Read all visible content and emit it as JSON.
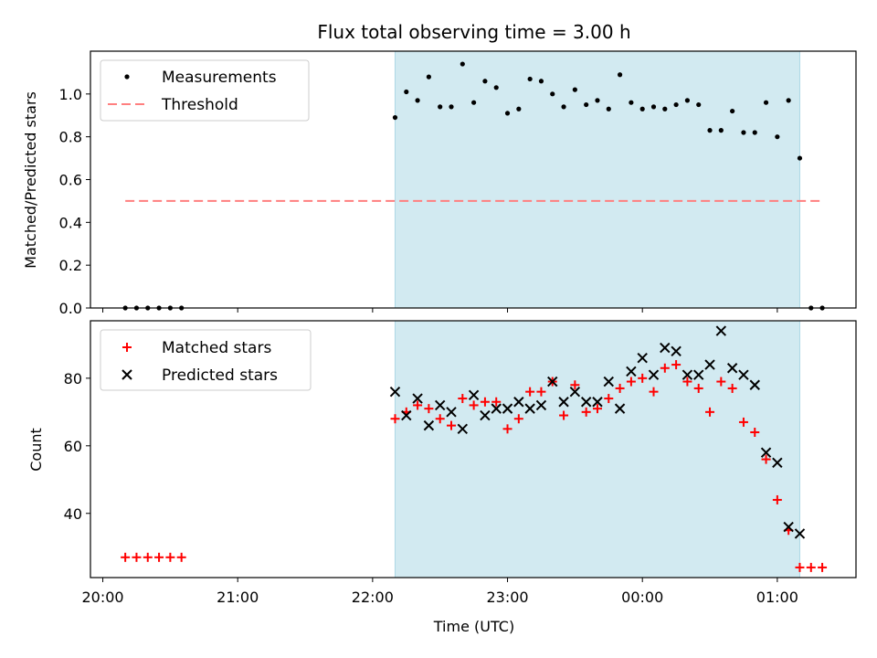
{
  "chart_data": {
    "type": "scatter",
    "title": "Flux total observing time = 3.00 h",
    "xlabel": "Time (UTC)",
    "x_ticks": [
      {
        "label": "20:00",
        "t": 0
      },
      {
        "label": "21:00",
        "t": 60
      },
      {
        "label": "22:00",
        "t": 120
      },
      {
        "label": "23:00",
        "t": 180
      },
      {
        "label": "00:00",
        "t": 240
      },
      {
        "label": "01:00",
        "t": 300
      }
    ],
    "xlim": [
      -5.5,
      335
    ],
    "shaded_interval": [
      130,
      310
    ],
    "shade_color": "#add8e6",
    "top_panel": {
      "ylabel": "Matched/Predicted stars",
      "ylim": [
        0,
        1.2
      ],
      "yticks": [
        "0.0",
        "0.2",
        "0.4",
        "0.6",
        "0.8",
        "1.0"
      ],
      "legend": {
        "placement": "upper left",
        "entries": [
          "Measurements",
          "Threshold"
        ]
      },
      "threshold": {
        "name": "Threshold",
        "value": 0.5,
        "x_range": [
          10,
          320
        ],
        "color": "#ff7f7f"
      },
      "measurements": {
        "name": "Measurements",
        "color": "#000000",
        "points": [
          [
            10,
            0
          ],
          [
            15,
            0
          ],
          [
            20,
            0
          ],
          [
            25,
            0
          ],
          [
            30,
            0
          ],
          [
            35,
            0
          ],
          [
            130,
            0.89
          ],
          [
            135,
            1.01
          ],
          [
            140,
            0.97
          ],
          [
            145,
            1.08
          ],
          [
            150,
            0.94
          ],
          [
            155,
            0.94
          ],
          [
            160,
            1.14
          ],
          [
            165,
            0.96
          ],
          [
            170,
            1.06
          ],
          [
            175,
            1.03
          ],
          [
            180,
            0.91
          ],
          [
            185,
            0.93
          ],
          [
            190,
            1.07
          ],
          [
            195,
            1.06
          ],
          [
            200,
            1.0
          ],
          [
            205,
            0.94
          ],
          [
            210,
            1.02
          ],
          [
            215,
            0.95
          ],
          [
            220,
            0.97
          ],
          [
            225,
            0.93
          ],
          [
            230,
            1.09
          ],
          [
            235,
            0.96
          ],
          [
            240,
            0.93
          ],
          [
            245,
            0.94
          ],
          [
            250,
            0.93
          ],
          [
            255,
            0.95
          ],
          [
            260,
            0.97
          ],
          [
            265,
            0.95
          ],
          [
            270,
            0.83
          ],
          [
            275,
            0.83
          ],
          [
            280,
            0.92
          ],
          [
            285,
            0.82
          ],
          [
            290,
            0.82
          ],
          [
            295,
            0.96
          ],
          [
            300,
            0.8
          ],
          [
            305,
            0.97
          ],
          [
            310,
            0.7
          ],
          [
            315,
            0
          ],
          [
            320,
            0
          ]
        ]
      }
    },
    "bottom_panel": {
      "ylabel": "Count",
      "ylim": [
        21,
        97
      ],
      "yticks": [
        "40",
        "60",
        "80"
      ],
      "legend": {
        "placement": "upper left",
        "entries": [
          "Matched stars",
          "Predicted stars"
        ]
      },
      "matched": {
        "name": "Matched stars",
        "color": "#ff0000",
        "points": [
          [
            10,
            27
          ],
          [
            15,
            27
          ],
          [
            20,
            27
          ],
          [
            25,
            27
          ],
          [
            30,
            27
          ],
          [
            35,
            27
          ],
          [
            130,
            68
          ],
          [
            135,
            70
          ],
          [
            140,
            72
          ],
          [
            145,
            71
          ],
          [
            150,
            68
          ],
          [
            155,
            66
          ],
          [
            160,
            74
          ],
          [
            165,
            72
          ],
          [
            170,
            73
          ],
          [
            175,
            73
          ],
          [
            180,
            65
          ],
          [
            185,
            68
          ],
          [
            190,
            76
          ],
          [
            195,
            76
          ],
          [
            200,
            79
          ],
          [
            205,
            69
          ],
          [
            210,
            78
          ],
          [
            215,
            70
          ],
          [
            220,
            71
          ],
          [
            225,
            74
          ],
          [
            230,
            77
          ],
          [
            235,
            79
          ],
          [
            240,
            80
          ],
          [
            245,
            76
          ],
          [
            250,
            83
          ],
          [
            255,
            84
          ],
          [
            260,
            79
          ],
          [
            265,
            77
          ],
          [
            270,
            70
          ],
          [
            275,
            79
          ],
          [
            280,
            77
          ],
          [
            285,
            67
          ],
          [
            290,
            64
          ],
          [
            295,
            56
          ],
          [
            300,
            44
          ],
          [
            305,
            35
          ],
          [
            310,
            24
          ],
          [
            315,
            24
          ],
          [
            320,
            24
          ]
        ]
      },
      "predicted": {
        "name": "Predicted stars",
        "color": "#000000",
        "points": [
          [
            130,
            76
          ],
          [
            135,
            69
          ],
          [
            140,
            74
          ],
          [
            145,
            66
          ],
          [
            150,
            72
          ],
          [
            155,
            70
          ],
          [
            160,
            65
          ],
          [
            165,
            75
          ],
          [
            170,
            69
          ],
          [
            175,
            71
          ],
          [
            180,
            71
          ],
          [
            185,
            73
          ],
          [
            190,
            71
          ],
          [
            195,
            72
          ],
          [
            200,
            79
          ],
          [
            205,
            73
          ],
          [
            210,
            76
          ],
          [
            215,
            73
          ],
          [
            220,
            73
          ],
          [
            225,
            79
          ],
          [
            230,
            71
          ],
          [
            235,
            82
          ],
          [
            240,
            86
          ],
          [
            245,
            81
          ],
          [
            250,
            89
          ],
          [
            255,
            88
          ],
          [
            260,
            81
          ],
          [
            265,
            81
          ],
          [
            270,
            84
          ],
          [
            275,
            94
          ],
          [
            280,
            83
          ],
          [
            285,
            81
          ],
          [
            290,
            78
          ],
          [
            295,
            58
          ],
          [
            300,
            55
          ],
          [
            305,
            36
          ],
          [
            310,
            34
          ]
        ]
      }
    }
  }
}
